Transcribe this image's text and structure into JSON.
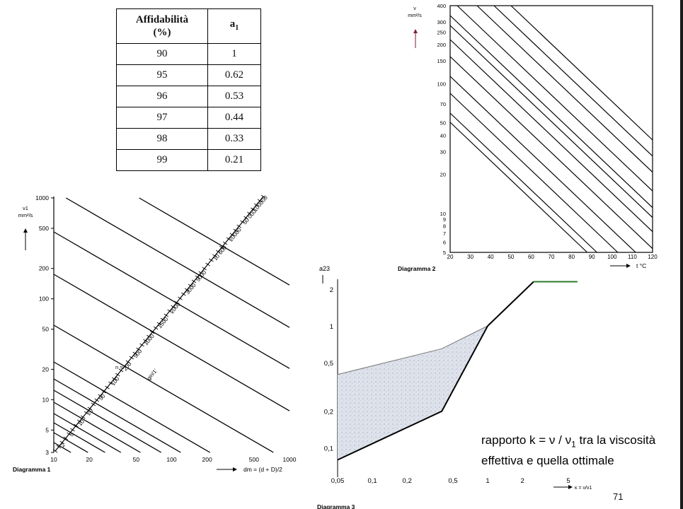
{
  "table": {
    "header": {
      "col1_line1": "Affidabilità",
      "col1_line2": "(%)",
      "col2_base": "a",
      "col2_sub": "1"
    },
    "rows": [
      {
        "affidabilita": "90",
        "a1": "1"
      },
      {
        "affidabilita": "95",
        "a1": "0.62"
      },
      {
        "affidabilita": "96",
        "a1": "0.53"
      },
      {
        "affidabilita": "97",
        "a1": "0.44"
      },
      {
        "affidabilita": "98",
        "a1": "0.33"
      },
      {
        "affidabilita": "99",
        "a1": "0.21"
      }
    ]
  },
  "chart_data": [
    {
      "type": "line",
      "title": "Diagramma 1",
      "ylabel": "ν1 mm²/s",
      "xlabel": "dm = (d + D)/2",
      "y_scale": "log",
      "x_scale": "log",
      "ylim": [
        3,
        1000
      ],
      "xlim": [
        10,
        1000
      ],
      "y_ticks": [
        "1000",
        "500",
        "200",
        "100",
        "50",
        "20",
        "10",
        "5",
        "3"
      ],
      "x_ticks": [
        "10",
        "20",
        "50",
        "100",
        "200",
        "500",
        "1000"
      ],
      "speed_unit": "giri/1'",
      "speed_scale_prefix": "n =",
      "speed_labels": [
        "2",
        "5",
        "10",
        "20",
        "50",
        "100",
        "200",
        "500",
        "1000",
        "1500",
        "2000",
        "3000",
        "5000",
        "10 000",
        "20000",
        "50 000",
        "100000"
      ]
    },
    {
      "type": "line",
      "title": "Diagramma 2",
      "ylabel_symbol": "ν",
      "ylabel_unit": "mm²/s",
      "xlabel": "t °C",
      "y_scale": "log",
      "ylim": [
        5,
        400
      ],
      "xlim": [
        20,
        120
      ],
      "y_ticks": [
        "400",
        "300",
        "250",
        "200",
        "150",
        "100",
        "70",
        "50",
        "40",
        "30",
        "20",
        "10",
        "9",
        "8",
        "7",
        "6",
        "5"
      ],
      "x_ticks": [
        "20",
        "30",
        "40",
        "50",
        "60",
        "70",
        "80",
        "90",
        "100",
        "110",
        "120"
      ]
    },
    {
      "type": "area",
      "title": "Diagramma 3",
      "ylabel": "a23",
      "xlabel": "κ = ν/ν1",
      "y_scale": "log",
      "x_scale": "log",
      "y_ticks": [
        "2",
        "1",
        "0,5",
        "0,2",
        "0,1"
      ],
      "x_ticks": [
        "0,05",
        "0,1",
        "0,2",
        "0,5",
        "1",
        "2",
        "5"
      ],
      "series": [
        {
          "name": "",
          "x": [
            0.05,
            0.4,
            1,
            2.5,
            6
          ],
          "y": [
            0.4,
            0.65,
            1,
            2.3,
            2.3
          ]
        },
        {
          "name": "",
          "x": [
            0.05,
            0.4,
            1
          ],
          "y": [
            0.08,
            0.2,
            1
          ]
        }
      ]
    }
  ],
  "caption": {
    "line1_pre": "rapporto  k = ν / ν",
    "line1_sub": "1",
    "line1_post": " tra la viscosità",
    "line2": "effettiva e quella ottimale"
  },
  "page_number": "71"
}
